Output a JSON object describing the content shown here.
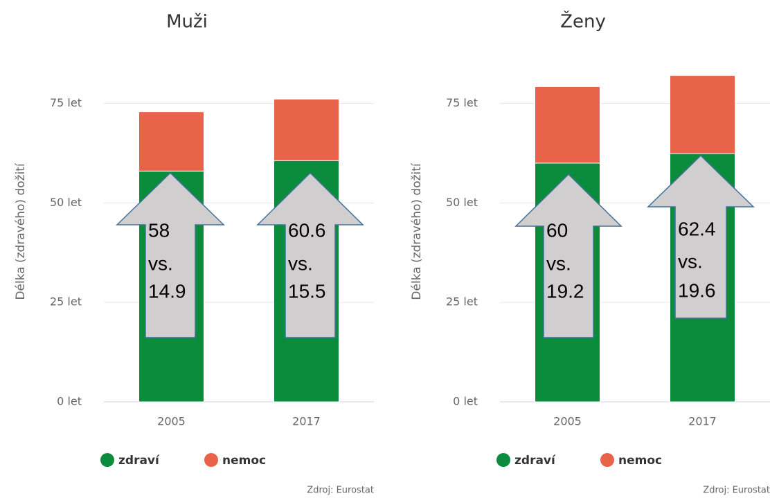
{
  "chart_data": [
    {
      "type": "bar",
      "stacked": true,
      "title": "Muži",
      "y_label": "Délka (zdravého) dožití",
      "categories": [
        "2005",
        "2017"
      ],
      "series": [
        {
          "name": "zdraví",
          "color": "#0a8c3c",
          "values": [
            58,
            60.6
          ]
        },
        {
          "name": "nemoc",
          "color": "#e9634b",
          "values": [
            14.9,
            15.5
          ]
        }
      ],
      "ylim": [
        0,
        85
      ],
      "yticks": [
        {
          "value": 0,
          "label": "0 let"
        },
        {
          "value": 25,
          "label": "25 let"
        },
        {
          "value": 50,
          "label": "50 let"
        },
        {
          "value": 75,
          "label": "75 let"
        }
      ],
      "grid": true,
      "annotations": [
        [
          "58",
          "vs.",
          "14.9"
        ],
        [
          "60.6",
          "vs.",
          "15.5"
        ]
      ],
      "source": "Zdroj: Eurostat"
    },
    {
      "type": "bar",
      "stacked": true,
      "title": "Ženy",
      "y_label": "Délka (zdravého) dožití",
      "categories": [
        "2005",
        "2017"
      ],
      "series": [
        {
          "name": "zdraví",
          "color": "#0a8c3c",
          "values": [
            60,
            62.4
          ]
        },
        {
          "name": "nemoc",
          "color": "#e9634b",
          "values": [
            19.2,
            19.6
          ]
        }
      ],
      "ylim": [
        0,
        85
      ],
      "yticks": [
        {
          "value": 0,
          "label": "0 let"
        },
        {
          "value": 25,
          "label": "25 let"
        },
        {
          "value": 50,
          "label": "50 let"
        },
        {
          "value": 75,
          "label": "75 let"
        }
      ],
      "grid": true,
      "annotations": [
        [
          "60",
          "vs.",
          "19.2"
        ],
        [
          "62.4",
          "vs.",
          "19.6"
        ]
      ],
      "source": "Zdroj: Eurostat"
    }
  ]
}
